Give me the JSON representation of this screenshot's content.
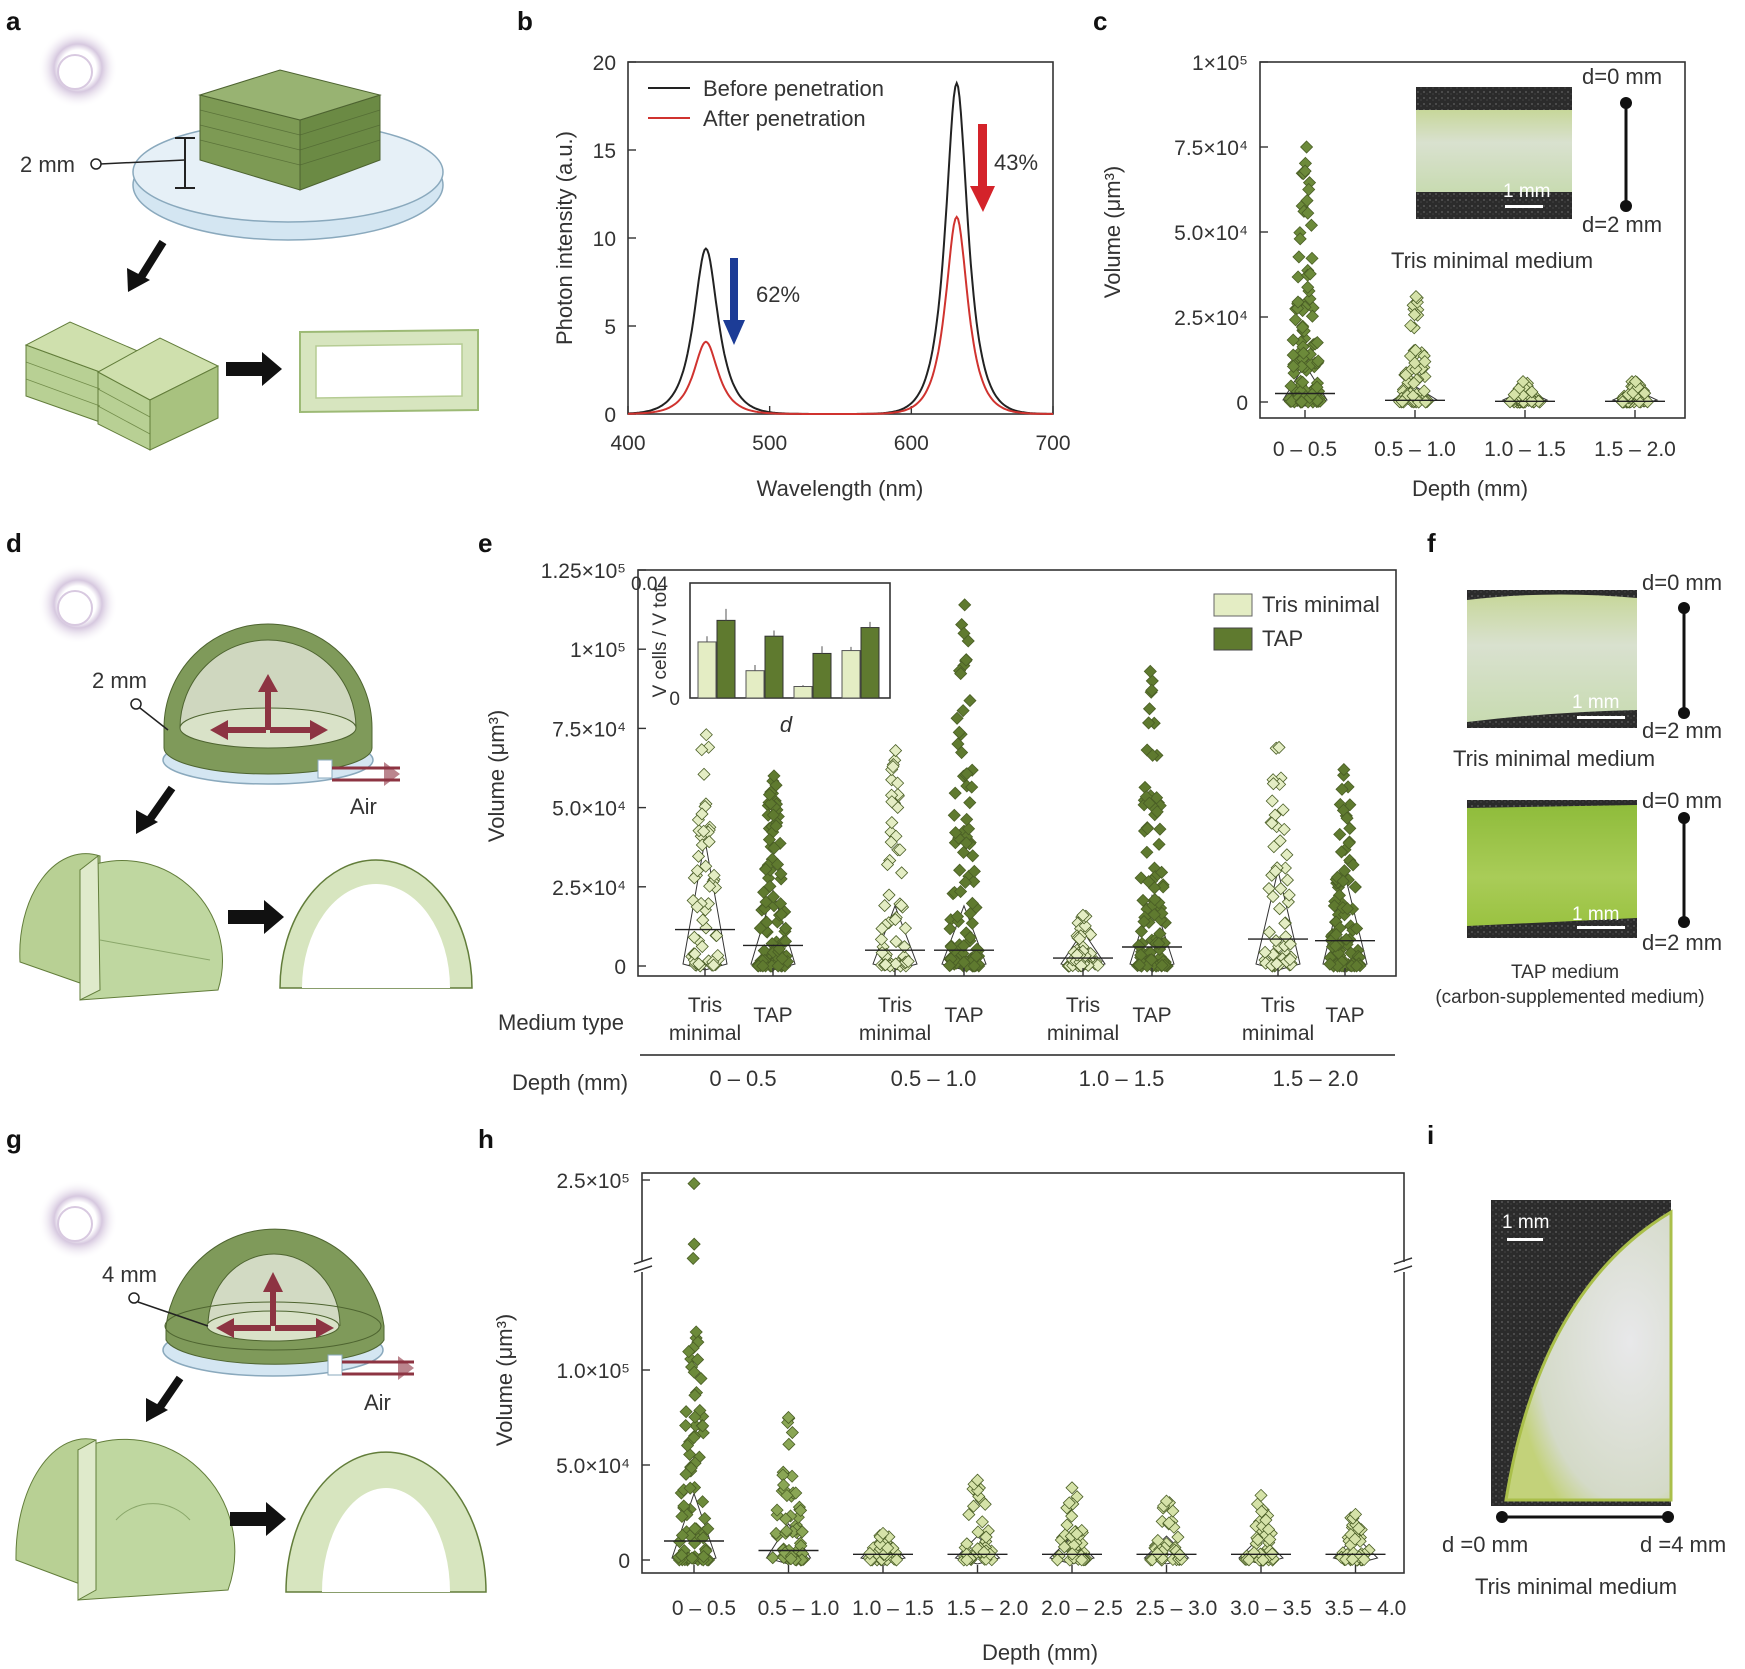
{
  "panel_labels": {
    "a": "a",
    "b": "b",
    "c": "c",
    "d": "d",
    "e": "e",
    "f": "f",
    "g": "g",
    "h": "h",
    "i": "i"
  },
  "schematics": {
    "a_dim": "2 mm",
    "d_dim": "2 mm",
    "d_air": "Air",
    "g_dim": "4 mm",
    "g_air": "Air"
  },
  "colors": {
    "light_green": "#e4edc4",
    "dark_green": "#5f7a2f",
    "bulb": "#c9b9d6",
    "arrow_maroon": "#8d3442",
    "arrow_blue": "#1c3c96",
    "arrow_red": "#d4232a"
  },
  "photos": {
    "c_scale": "1 mm",
    "c_d0": "d=0 mm",
    "c_d2": "d=2 mm",
    "c_caption": "Tris minimal medium",
    "f1_scale": "1 mm",
    "f1_d0": "d=0 mm",
    "f1_d2": "d=2 mm",
    "f1_caption": "Tris minimal medium",
    "f2_scale": "1 mm",
    "f2_d0": "d=0 mm",
    "f2_d2": "d=2 mm",
    "f2_caption1": "TAP medium",
    "f2_caption2": "(carbon-supplemented medium)",
    "i_scale": "1 mm",
    "i_d0": "d =0 mm",
    "i_d4": "d =4 mm",
    "i_caption": "Tris minimal medium"
  },
  "chart_data": [
    {
      "panel": "b",
      "type": "line",
      "xlabel": "Wavelength (nm)",
      "ylabel": "Photon intensity (a.u.)",
      "xlim": [
        400,
        700
      ],
      "ylim": [
        0,
        20
      ],
      "xticks": [
        "400",
        "500",
        "600",
        "700"
      ],
      "yticks": [
        "0",
        "5",
        "10",
        "15",
        "20"
      ],
      "series": [
        {
          "name": "Before penetration",
          "color": "#222222",
          "peaks": [
            {
              "center": 455,
              "height": 9.4,
              "width": 11
            },
            {
              "center": 632,
              "height": 18.8,
              "width": 10
            }
          ]
        },
        {
          "name": "After penetration",
          "color": "#d0332f",
          "peaks": [
            {
              "center": 455,
              "height": 4.1,
              "width": 11
            },
            {
              "center": 632,
              "height": 11.2,
              "width": 10
            }
          ]
        }
      ],
      "annotations": [
        "62%",
        "43%"
      ]
    },
    {
      "panel": "c",
      "type": "scatter",
      "xlabel": "Depth (mm)",
      "ylabel": "Volume (μm³)",
      "categories": [
        "0 – 0.5",
        "0.5 – 1.0",
        "1.0 – 1.5",
        "1.5 – 2.0"
      ],
      "ylim": [
        0,
        100000
      ],
      "yticks": [
        "0",
        "2.5×10⁴",
        "5.0×10⁴",
        "7.5×10⁴",
        "1×10⁵"
      ],
      "groups": [
        {
          "max": 75000,
          "median": 2500
        },
        {
          "max": 31000,
          "median": 500
        },
        {
          "max": 6000,
          "median": 200
        },
        {
          "max": 6000,
          "median": 200
        }
      ]
    },
    {
      "panel": "e",
      "type": "scatter",
      "ylabel": "Volume (μm³)",
      "ylim": [
        0,
        125000
      ],
      "yticks": [
        "0",
        "2.5×10⁴",
        "5.0×10⁴",
        "7.5×10⁴",
        "1×10⁵",
        "1.25×10⁵"
      ],
      "legend": [
        "Tris minimal",
        "TAP"
      ],
      "row_label_medium": "Medium type",
      "row_label_depth": "Depth (mm)",
      "medium_tris_1": "Tris",
      "medium_tris_2": "minimal",
      "medium_tap": "TAP",
      "depths": [
        "0 – 0.5",
        "0.5 – 1.0",
        "1.0 – 1.5",
        "1.5 – 2.0"
      ],
      "groups": [
        {
          "medium": "Tris minimal",
          "depth": "0 – 0.5",
          "max": 73000,
          "median": 11500
        },
        {
          "medium": "TAP",
          "depth": "0 – 0.5",
          "max": 60000,
          "median": 6500
        },
        {
          "medium": "Tris minimal",
          "depth": "0.5 – 1.0",
          "max": 68000,
          "median": 5000
        },
        {
          "medium": "TAP",
          "depth": "0.5 – 1.0",
          "max": 114000,
          "median": 5000
        },
        {
          "medium": "Tris minimal",
          "depth": "1.0 – 1.5",
          "max": 16000,
          "median": 2500
        },
        {
          "medium": "TAP",
          "depth": "1.0 – 1.5",
          "max": 93000,
          "median": 6000
        },
        {
          "medium": "Tris minimal",
          "depth": "1.5 – 2.0",
          "max": 69000,
          "median": 8500
        },
        {
          "medium": "TAP",
          "depth": "1.5 – 2.0",
          "max": 62000,
          "median": 8000
        }
      ],
      "inset": {
        "type": "bar",
        "ylabel": "V cells / V tot",
        "xlabel": "d",
        "ylim": [
          0,
          0.04
        ],
        "yticks": [
          "0",
          "0.04"
        ],
        "tris": [
          0.0195,
          0.0095,
          0.004,
          0.0165
        ],
        "tap": [
          0.027,
          0.0215,
          0.0155,
          0.0245
        ],
        "tris_err": [
          0.002,
          0.002,
          0.0005,
          0.0013
        ],
        "tap_err": [
          0.004,
          0.002,
          0.0025,
          0.002
        ]
      }
    },
    {
      "panel": "h",
      "type": "scatter",
      "xlabel": "Depth (mm)",
      "ylabel": "Volume (μm³)",
      "categories": [
        "0 – 0.5",
        "0.5 – 1.0",
        "1.0 – 1.5",
        "1.5 – 2.0",
        "2.0 – 2.5",
        "2.5 – 3.0",
        "3.0 – 3.5",
        "3.5 – 4.0"
      ],
      "yticks": [
        "0",
        "5.0×10⁴",
        "1.0×10⁵",
        "2.5×10⁵"
      ],
      "broken_axis": true,
      "groups": [
        {
          "max": 245000,
          "median": 10000
        },
        {
          "max": 75000,
          "median": 5000
        },
        {
          "max": 14000,
          "median": 3000
        },
        {
          "max": 42000,
          "median": 3000
        },
        {
          "max": 38000,
          "median": 3000
        },
        {
          "max": 31000,
          "median": 3000
        },
        {
          "max": 34000,
          "median": 3000
        },
        {
          "max": 24000,
          "median": 3000
        }
      ]
    }
  ]
}
